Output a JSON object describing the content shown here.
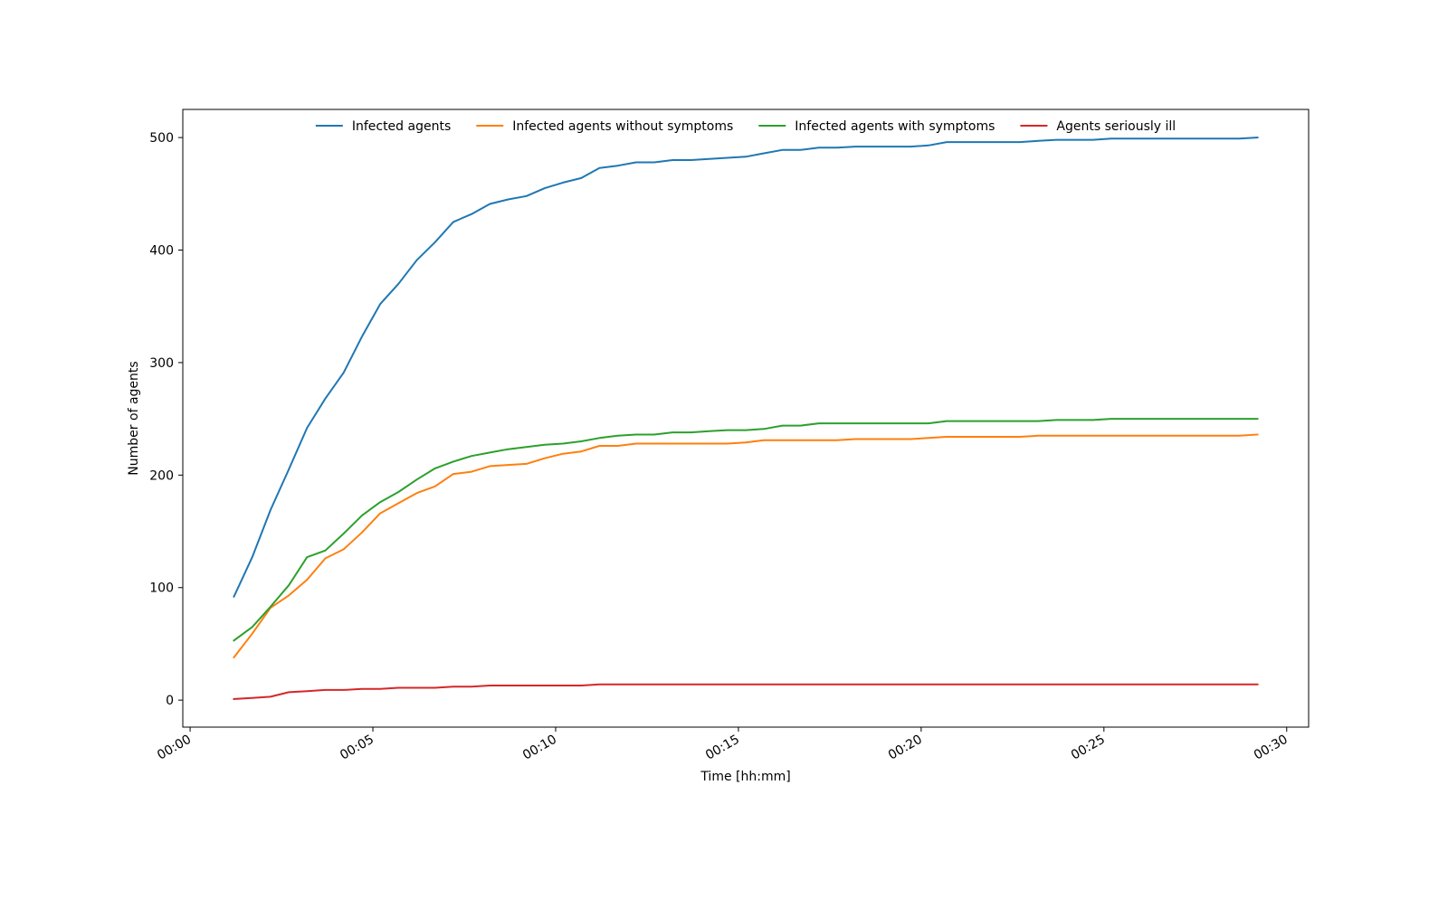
{
  "chart_data": {
    "type": "line",
    "title": "",
    "xlabel": "Time [hh:mm]",
    "ylabel": "Number of agents",
    "xlim": [
      "-00:00:12",
      "00:30:36"
    ],
    "ylim": [
      -24,
      525
    ],
    "grid": false,
    "legend_position": "top-center",
    "x_ticks": [
      "00:00",
      "00:05",
      "00:10",
      "00:15",
      "00:20",
      "00:25",
      "00:30"
    ],
    "y_ticks": [
      0,
      100,
      200,
      300,
      400,
      500
    ],
    "x": [
      "00:01:12",
      "00:01:42",
      "00:02:12",
      "00:02:42",
      "00:03:12",
      "00:03:42",
      "00:04:12",
      "00:04:42",
      "00:05:12",
      "00:05:42",
      "00:06:12",
      "00:06:42",
      "00:07:12",
      "00:07:42",
      "00:08:12",
      "00:08:42",
      "00:09:12",
      "00:09:42",
      "00:10:12",
      "00:10:42",
      "00:11:12",
      "00:11:42",
      "00:12:12",
      "00:12:42",
      "00:13:12",
      "00:13:42",
      "00:14:12",
      "00:14:42",
      "00:15:12",
      "00:15:42",
      "00:16:12",
      "00:16:42",
      "00:17:12",
      "00:17:42",
      "00:18:12",
      "00:18:42",
      "00:19:12",
      "00:19:42",
      "00:20:12",
      "00:20:42",
      "00:21:12",
      "00:21:42",
      "00:22:12",
      "00:22:42",
      "00:23:12",
      "00:23:42",
      "00:24:12",
      "00:24:42",
      "00:25:12",
      "00:25:42",
      "00:26:12",
      "00:26:42",
      "00:27:12",
      "00:27:42",
      "00:28:12",
      "00:28:42",
      "00:29:12"
    ],
    "series": [
      {
        "name": "Infected agents",
        "color": "#1f77b4",
        "values": [
          92,
          127,
          169,
          205,
          242,
          268,
          291,
          323,
          352,
          370,
          391,
          407,
          425,
          432,
          441,
          445,
          448,
          455,
          460,
          464,
          473,
          475,
          478,
          478,
          480,
          480,
          481,
          482,
          483,
          486,
          489,
          489,
          491,
          491,
          492,
          492,
          492,
          492,
          493,
          496,
          496,
          496,
          496,
          496,
          497,
          498,
          498,
          498,
          499,
          499,
          499,
          499,
          499,
          499,
          499,
          499,
          500
        ]
      },
      {
        "name": "Infected agents without symptoms",
        "color": "#ff7f0e",
        "values": [
          38,
          59,
          82,
          93,
          107,
          126,
          134,
          149,
          166,
          175,
          184,
          190,
          201,
          203,
          208,
          209,
          210,
          215,
          219,
          221,
          226,
          226,
          228,
          228,
          228,
          228,
          228,
          228,
          229,
          231,
          231,
          231,
          231,
          231,
          232,
          232,
          232,
          232,
          233,
          234,
          234,
          234,
          234,
          234,
          235,
          235,
          235,
          235,
          235,
          235,
          235,
          235,
          235,
          235,
          235,
          235,
          236
        ]
      },
      {
        "name": "Infected agents with symptoms",
        "color": "#2ca02c",
        "values": [
          53,
          65,
          83,
          102,
          127,
          133,
          148,
          164,
          176,
          185,
          196,
          206,
          212,
          217,
          220,
          223,
          225,
          227,
          228,
          230,
          233,
          235,
          236,
          236,
          238,
          238,
          239,
          240,
          240,
          241,
          244,
          244,
          246,
          246,
          246,
          246,
          246,
          246,
          246,
          248,
          248,
          248,
          248,
          248,
          248,
          249,
          249,
          249,
          250,
          250,
          250,
          250,
          250,
          250,
          250,
          250,
          250
        ]
      },
      {
        "name": "Agents seriously ill",
        "color": "#d62728",
        "values": [
          1,
          2,
          3,
          7,
          8,
          9,
          9,
          10,
          10,
          11,
          11,
          11,
          12,
          12,
          13,
          13,
          13,
          13,
          13,
          13,
          14,
          14,
          14,
          14,
          14,
          14,
          14,
          14,
          14,
          14,
          14,
          14,
          14,
          14,
          14,
          14,
          14,
          14,
          14,
          14,
          14,
          14,
          14,
          14,
          14,
          14,
          14,
          14,
          14,
          14,
          14,
          14,
          14,
          14,
          14,
          14,
          14
        ]
      }
    ]
  }
}
